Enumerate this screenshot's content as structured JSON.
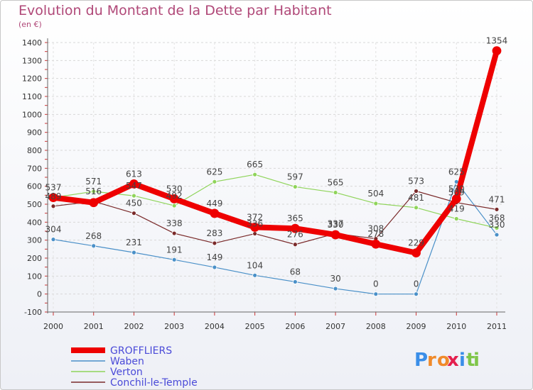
{
  "title": "Evolution du Montant de la Dette par Habitant",
  "subtitle": "(en €)",
  "brand": {
    "letters": [
      "P",
      "r",
      "o",
      "x",
      "i",
      "t",
      "i"
    ],
    "colors": [
      "#3a8ee8",
      "#f08a2a",
      "#f08a2a",
      "#e4204e",
      "#3a8ee8",
      "#7fc64a",
      "#7fc64a"
    ]
  },
  "chart_data": {
    "type": "line",
    "title": "Evolution du Montant de la Dette par Habitant",
    "ylabel": "(en €)",
    "xlabel": "",
    "x": [
      "2000",
      "2001",
      "2002",
      "2003",
      "2004",
      "2005",
      "2006",
      "2007",
      "2008",
      "2009",
      "2010",
      "2011"
    ],
    "ylim": [
      -100,
      1400
    ],
    "yticks": [
      -100,
      0,
      100,
      200,
      300,
      400,
      500,
      600,
      700,
      800,
      900,
      1000,
      1100,
      1200,
      1300,
      1400
    ],
    "grid": true,
    "legend": "bottom-left",
    "series": [
      {
        "name": "Waben",
        "color": "#4a90c8",
        "width": 1.2,
        "marker": 3,
        "values": [
          304,
          268,
          231,
          191,
          149,
          104,
          68,
          30,
          0,
          0,
          625,
          330
        ],
        "labels": [
          "304",
          "268",
          "231",
          "191",
          "149",
          "104",
          "68",
          "30",
          "0",
          "0",
          "625",
          "330"
        ]
      },
      {
        "name": "Verton",
        "color": "#8fd45a",
        "width": 1.2,
        "marker": 3,
        "values": [
          537,
          571,
          547,
          492,
          625,
          665,
          597,
          565,
          504,
          481,
          419,
          368
        ],
        "labels": [
          "537",
          "571",
          "547",
          "492",
          "625",
          "665",
          "597",
          "565",
          "504",
          "481",
          "419",
          "368"
        ]
      },
      {
        "name": "Conchil-le-Temple",
        "color": "#7a2a2a",
        "width": 1.2,
        "marker": 3,
        "values": [
          489,
          516,
          450,
          338,
          283,
          336,
          276,
          337,
          308,
          573,
          509,
          471
        ],
        "labels": [
          "489",
          "516",
          "450",
          "338",
          "283",
          "336",
          "276",
          "337",
          "308",
          "573",
          "509",
          "471"
        ]
      },
      {
        "name": "GROFFLIERS",
        "color": "#ee0000",
        "width": 8,
        "marker": 6,
        "values": [
          537,
          509,
          613,
          530,
          449,
          372,
          365,
          330,
          278,
          229,
          530,
          1354
        ],
        "labels": [
          "",
          "",
          "613",
          "530",
          "449",
          "372",
          "365",
          "330",
          "278",
          "229",
          "530",
          "1354"
        ]
      }
    ]
  }
}
